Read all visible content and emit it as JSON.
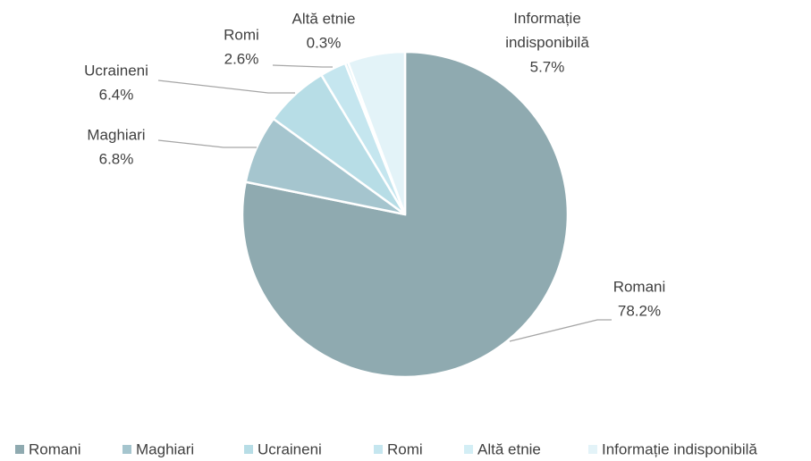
{
  "chart_data": {
    "type": "pie",
    "categories": [
      "Romani",
      "Maghiari",
      "Ucraineni",
      "Romi",
      "Altă etnie",
      "Informație indisponibilă"
    ],
    "values": [
      78.2,
      6.8,
      6.4,
      2.6,
      0.3,
      5.7
    ],
    "value_labels": [
      "78.2%",
      "6.8%",
      "6.4%",
      "2.6%",
      "0.3%",
      "5.7%"
    ],
    "colors": [
      "#8faab0",
      "#a5c5ce",
      "#b7dde6",
      "#c5e6ef",
      "#d3eef5",
      "#e3f3f8"
    ],
    "legend": "bottom"
  }
}
